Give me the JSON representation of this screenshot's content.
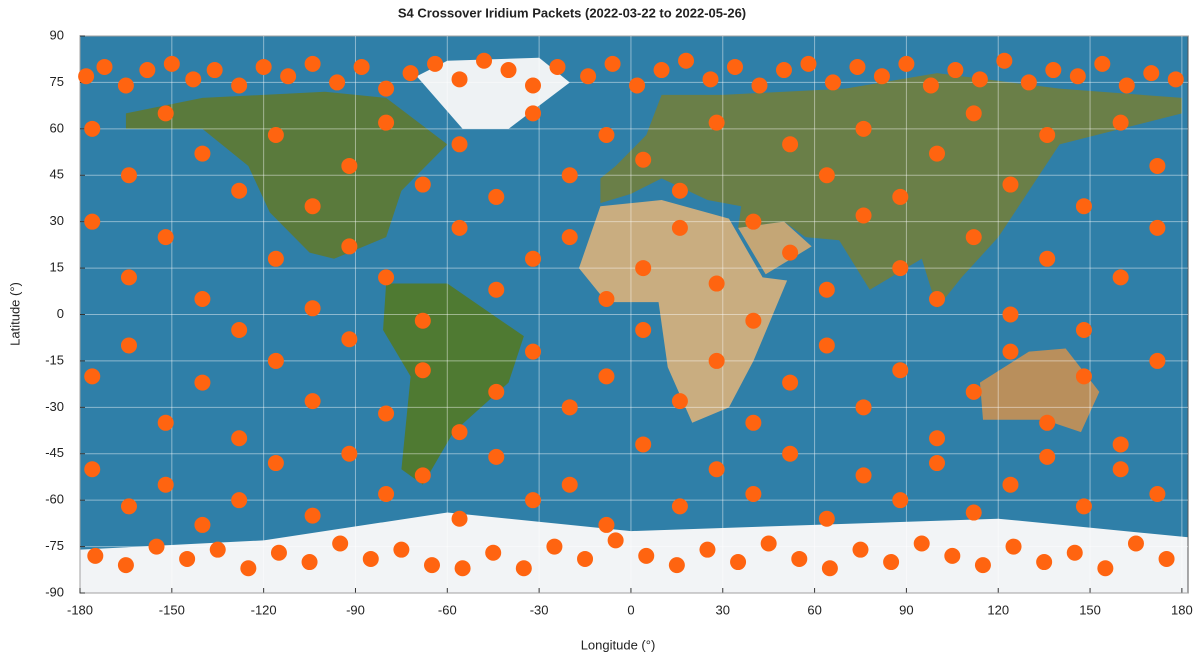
{
  "chart_data": {
    "type": "scatter",
    "title": "S4 Crossover Iridium Packets (2022-03-22 to 2022-05-26)",
    "xlabel": "Longitude (°)",
    "ylabel": "Latitude (°)",
    "color": "#ff6410",
    "grid": true,
    "xlim": [
      -180,
      182
    ],
    "ylim": [
      -90,
      90
    ],
    "xticks": [
      -180,
      -150,
      -120,
      -90,
      -60,
      -30,
      0,
      30,
      60,
      90,
      120,
      150,
      180
    ],
    "yticks": [
      -90,
      -75,
      -60,
      -45,
      -30,
      -15,
      0,
      15,
      30,
      45,
      60,
      75,
      90
    ],
    "x": [
      -178,
      -172,
      -165,
      -158,
      -150,
      -143,
      -136,
      -128,
      -120,
      -112,
      -104,
      -96,
      -88,
      -80,
      -72,
      -64,
      -56,
      -48,
      -40,
      -32,
      -24,
      -14,
      -6,
      2,
      10,
      18,
      26,
      34,
      42,
      50,
      58,
      66,
      74,
      82,
      90,
      98,
      106,
      114,
      122,
      130,
      138,
      146,
      154,
      162,
      170,
      178,
      -175,
      -165,
      -155,
      -145,
      -135,
      -125,
      -115,
      -105,
      -95,
      -85,
      -75,
      -65,
      -55,
      -45,
      -35,
      -25,
      -15,
      -5,
      5,
      15,
      25,
      35,
      45,
      55,
      65,
      75,
      85,
      95,
      105,
      115,
      125,
      135,
      145,
      155,
      165,
      175,
      -176,
      -176,
      -176,
      -176,
      -164,
      -164,
      -164,
      -164,
      -152,
      -152,
      -152,
      -152,
      -140,
      -140,
      -140,
      -140,
      -128,
      -128,
      -128,
      -128,
      -116,
      -116,
      -116,
      -116,
      -104,
      -104,
      -104,
      -104,
      -92,
      -92,
      -92,
      -92,
      -80,
      -80,
      -80,
      -80,
      -68,
      -68,
      -68,
      -68,
      -56,
      -56,
      -56,
      -56,
      -44,
      -44,
      -44,
      -44,
      -32,
      -32,
      -32,
      -32,
      -20,
      -20,
      -20,
      -20,
      -8,
      -8,
      -8,
      -8,
      4,
      4,
      4,
      4,
      16,
      16,
      16,
      16,
      28,
      28,
      28,
      28,
      40,
      40,
      40,
      40,
      52,
      52,
      52,
      52,
      64,
      64,
      64,
      64,
      76,
      76,
      76,
      76,
      88,
      88,
      88,
      88,
      100,
      100,
      100,
      100,
      112,
      112,
      112,
      112,
      124,
      124,
      124,
      124,
      136,
      136,
      136,
      136,
      148,
      148,
      148,
      148,
      160,
      160,
      160,
      160,
      172,
      172,
      172,
      172
    ],
    "y": [
      77,
      80,
      74,
      79,
      81,
      76,
      79,
      74,
      80,
      77,
      81,
      75,
      80,
      73,
      78,
      81,
      76,
      82,
      79,
      74,
      80,
      77,
      81,
      74,
      79,
      82,
      76,
      80,
      74,
      79,
      81,
      75,
      80,
      77,
      81,
      74,
      79,
      76,
      82,
      75,
      79,
      77,
      81,
      74,
      78,
      76,
      -78,
      -81,
      -75,
      -79,
      -76,
      -82,
      -77,
      -80,
      -74,
      -79,
      -76,
      -81,
      -82,
      -77,
      -82,
      -75,
      -79,
      -73,
      -78,
      -81,
      -76,
      -80,
      -74,
      -79,
      -82,
      -76,
      -80,
      -74,
      -78,
      -81,
      -75,
      -80,
      -77,
      -82,
      -74,
      -79,
      60,
      30,
      -20,
      -50,
      45,
      12,
      -10,
      -62,
      65,
      25,
      -35,
      -55,
      52,
      5,
      -22,
      -68,
      40,
      -5,
      -40,
      -60,
      58,
      18,
      -15,
      -48,
      35,
      2,
      -28,
      -65,
      48,
      22,
      -8,
      -45,
      62,
      12,
      -32,
      -58,
      42,
      -2,
      -18,
      -52,
      55,
      28,
      -38,
      -66,
      38,
      8,
      -25,
      -46,
      65,
      18,
      -12,
      -60,
      45,
      25,
      -30,
      -55,
      58,
      5,
      -20,
      -68,
      50,
      15,
      -5,
      -42,
      40,
      28,
      -28,
      -62,
      62,
      10,
      -15,
      -50,
      30,
      -2,
      -35,
      -58,
      55,
      20,
      -22,
      -45,
      45,
      8,
      -10,
      -66,
      60,
      32,
      -30,
      -52,
      38,
      15,
      -18,
      -60,
      52,
      5,
      -40,
      -48,
      65,
      25,
      -25,
      -64,
      42,
      0,
      -12,
      -55,
      58,
      18,
      -35,
      -46,
      35,
      -5,
      -20,
      -62,
      62,
      12,
      -42,
      -50,
      48,
      28,
      -15,
      -58
    ]
  }
}
